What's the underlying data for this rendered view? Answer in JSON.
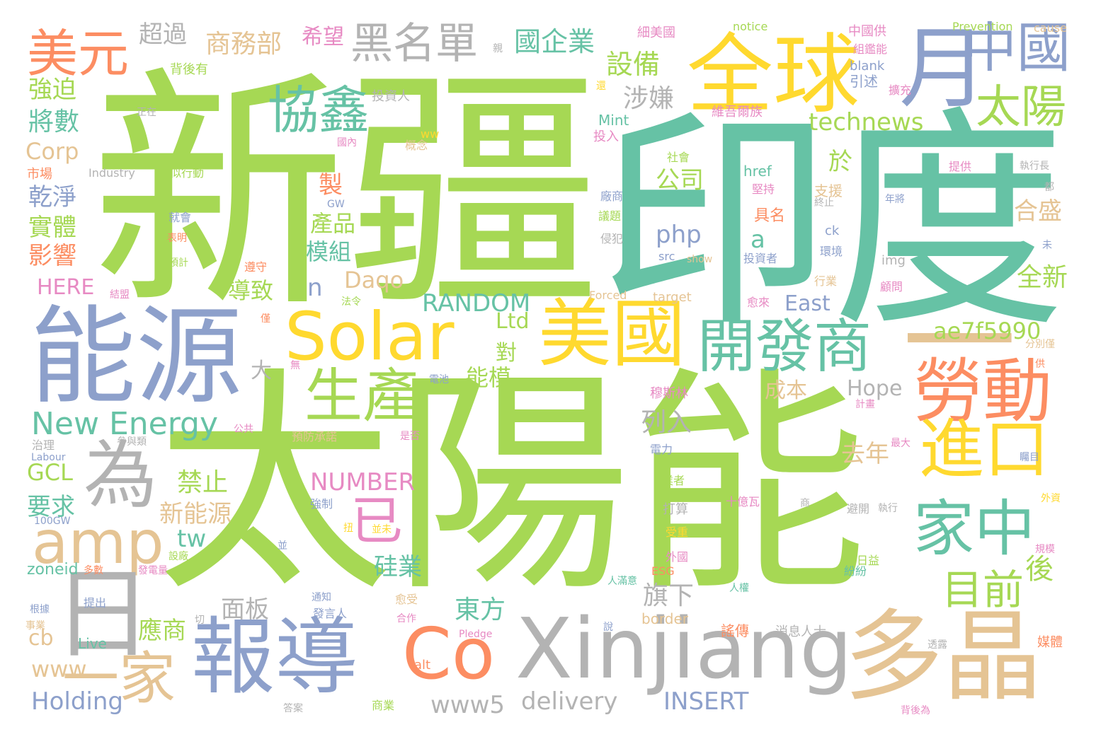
{
  "palette": {
    "green": "#a6d854",
    "teal": "#66c2a5",
    "blue": "#8da0cb",
    "orange": "#fc8d62",
    "yellow": "#ffd92f",
    "tan": "#e5c494",
    "gray": "#b3b3b3",
    "pink": "#e78ac3"
  },
  "words": [
    {
      "text": "新疆",
      "color": "green"
    },
    {
      "text": "印度",
      "color": "teal"
    },
    {
      "text": "太陽能",
      "color": "green"
    },
    {
      "text": "能源",
      "color": "blue"
    },
    {
      "text": "全球",
      "color": "yellow"
    },
    {
      "text": "月",
      "color": "blue"
    },
    {
      "text": "中國",
      "color": "blue"
    },
    {
      "text": "太陽",
      "color": "green"
    },
    {
      "text": "美元",
      "color": "orange"
    },
    {
      "text": "黑名單",
      "color": "gray"
    },
    {
      "text": "協鑫",
      "color": "teal"
    },
    {
      "text": "Solar",
      "color": "yellow"
    },
    {
      "text": "美國",
      "color": "yellow"
    },
    {
      "text": "開發商",
      "color": "teal"
    },
    {
      "text": "一",
      "color": "tan"
    },
    {
      "text": "勞動",
      "color": "orange"
    },
    {
      "text": "進口",
      "color": "yellow"
    },
    {
      "text": "生產",
      "color": "green"
    },
    {
      "text": "為",
      "color": "gray"
    },
    {
      "text": "amp",
      "color": "tan"
    },
    {
      "text": "家中",
      "color": "teal"
    },
    {
      "text": "目前",
      "color": "green"
    },
    {
      "text": "已",
      "color": "pink"
    },
    {
      "text": "日",
      "color": "gray"
    },
    {
      "text": "一家",
      "color": "tan"
    },
    {
      "text": "報導",
      "color": "blue"
    },
    {
      "text": "Co",
      "color": "orange"
    },
    {
      "text": "Xinjiang",
      "color": "gray"
    },
    {
      "text": "多晶",
      "color": "tan"
    },
    {
      "text": "New Energy",
      "color": "teal"
    },
    {
      "text": "technews",
      "color": "green"
    },
    {
      "text": "ae7f5990",
      "color": "green"
    },
    {
      "text": "RANDOM",
      "color": "teal"
    },
    {
      "text": "NUMBER",
      "color": "pink"
    },
    {
      "text": "INSERT",
      "color": "blue"
    },
    {
      "text": "delivery",
      "color": "gray"
    },
    {
      "text": "www5",
      "color": "gray"
    },
    {
      "text": "Holding",
      "color": "blue"
    },
    {
      "text": "www",
      "color": "tan"
    },
    {
      "text": "HERE",
      "color": "pink"
    },
    {
      "text": "Corp",
      "color": "tan"
    },
    {
      "text": "GCL",
      "color": "green"
    },
    {
      "text": "Daqo",
      "color": "tan"
    },
    {
      "text": "Ltd",
      "color": "green"
    },
    {
      "text": "Hope",
      "color": "gray"
    },
    {
      "text": "East",
      "color": "blue"
    },
    {
      "text": "php",
      "color": "blue"
    },
    {
      "text": "a",
      "color": "teal"
    },
    {
      "text": "n",
      "color": "blue"
    },
    {
      "text": "tw",
      "color": "teal"
    },
    {
      "text": "cb",
      "color": "tan"
    },
    {
      "text": "zoneid",
      "color": "teal"
    },
    {
      "text": "超過",
      "color": "gray"
    },
    {
      "text": "商務部",
      "color": "tan"
    },
    {
      "text": "希望",
      "color": "pink"
    },
    {
      "text": "國企業",
      "color": "teal"
    },
    {
      "text": "設備",
      "color": "green"
    },
    {
      "text": "涉嫌",
      "color": "gray"
    },
    {
      "text": "強迫",
      "color": "green"
    },
    {
      "text": "將數",
      "color": "teal"
    },
    {
      "text": "乾淨",
      "color": "blue"
    },
    {
      "text": "實體",
      "color": "green"
    },
    {
      "text": "影響",
      "color": "orange"
    },
    {
      "text": "公司",
      "color": "green"
    },
    {
      "text": "於",
      "color": "green"
    },
    {
      "text": "製",
      "color": "orange"
    },
    {
      "text": "產品",
      "color": "green"
    },
    {
      "text": "模組",
      "color": "teal"
    },
    {
      "text": "導致",
      "color": "green"
    },
    {
      "text": "合盛",
      "color": "tan"
    },
    {
      "text": "全新",
      "color": "green"
    },
    {
      "text": "對",
      "color": "green"
    },
    {
      "text": "能模",
      "color": "green"
    },
    {
      "text": "大",
      "color": "gray"
    },
    {
      "text": "成本",
      "color": "tan"
    },
    {
      "text": "列入",
      "color": "gray"
    },
    {
      "text": "去年",
      "color": "tan"
    },
    {
      "text": "禁止",
      "color": "green"
    },
    {
      "text": "新能源",
      "color": "tan"
    },
    {
      "text": "要求",
      "color": "teal"
    },
    {
      "text": "硅業",
      "color": "teal"
    },
    {
      "text": "後",
      "color": "green"
    },
    {
      "text": "面板",
      "color": "gray"
    },
    {
      "text": "旗下",
      "color": "gray"
    },
    {
      "text": "東方",
      "color": "teal"
    },
    {
      "text": "應商",
      "color": "green"
    },
    {
      "text": "背後有",
      "color": "green"
    },
    {
      "text": "投資人",
      "color": "gray"
    },
    {
      "text": "細美國",
      "color": "pink"
    },
    {
      "text": "notice",
      "color": "green"
    },
    {
      "text": "Prevention",
      "color": "green"
    },
    {
      "text": "cause",
      "color": "tan"
    },
    {
      "text": "中國供",
      "color": "pink"
    },
    {
      "text": "組鑑能",
      "color": "pink"
    },
    {
      "text": "blank",
      "color": "blue"
    },
    {
      "text": "引述",
      "color": "blue"
    },
    {
      "text": "擴充",
      "color": "pink"
    },
    {
      "text": "維吾爾族",
      "color": "pink"
    },
    {
      "text": "Mint",
      "color": "teal"
    },
    {
      "text": "投入",
      "color": "pink"
    },
    {
      "text": "Industry",
      "color": "gray"
    },
    {
      "text": "似行動",
      "color": "green"
    },
    {
      "text": "市場",
      "color": "orange"
    },
    {
      "text": "正在",
      "color": "gray"
    },
    {
      "text": "國內",
      "color": "pink"
    },
    {
      "text": "概念",
      "color": "tan"
    },
    {
      "text": "社會",
      "color": "green"
    },
    {
      "text": "href",
      "color": "teal"
    },
    {
      "text": "堅持",
      "color": "pink"
    },
    {
      "text": "支援",
      "color": "tan"
    },
    {
      "text": "提供",
      "color": "pink"
    },
    {
      "text": "執行長",
      "color": "gray"
    },
    {
      "text": "廠商",
      "color": "blue"
    },
    {
      "text": "就會",
      "color": "blue"
    },
    {
      "text": "表明",
      "color": "orange"
    },
    {
      "text": "具名",
      "color": "orange"
    },
    {
      "text": "年將",
      "color": "blue"
    },
    {
      "text": "ck",
      "color": "blue"
    },
    {
      "text": "src",
      "color": "blue"
    },
    {
      "text": "show",
      "color": "tan"
    },
    {
      "text": "投資者",
      "color": "blue"
    },
    {
      "text": "環境",
      "color": "blue"
    },
    {
      "text": "img",
      "color": "gray"
    },
    {
      "text": "預計",
      "color": "green"
    },
    {
      "text": "遵守",
      "color": "orange"
    },
    {
      "text": "議題",
      "color": "green"
    },
    {
      "text": "侵犯",
      "color": "gray"
    },
    {
      "text": "target",
      "color": "tan"
    },
    {
      "text": "Forced",
      "color": "tan"
    },
    {
      "text": "愈來",
      "color": "pink"
    },
    {
      "text": "行業",
      "color": "tan"
    },
    {
      "text": "顧問",
      "color": "pink"
    },
    {
      "text": "結盟",
      "color": "pink"
    },
    {
      "text": "法令",
      "color": "green"
    },
    {
      "text": "電池",
      "color": "blue"
    },
    {
      "text": "穆斯林",
      "color": "pink"
    },
    {
      "text": "分別僅",
      "color": "tan"
    },
    {
      "text": "計畫",
      "color": "pink"
    },
    {
      "text": "公共",
      "color": "pink"
    },
    {
      "text": "參與類",
      "color": "gray"
    },
    {
      "text": "預防承諾",
      "color": "tan"
    },
    {
      "text": "是否",
      "color": "pink"
    },
    {
      "text": "治理",
      "color": "gray"
    },
    {
      "text": "Labour",
      "color": "blue"
    },
    {
      "text": "電力",
      "color": "blue"
    },
    {
      "text": "最大",
      "color": "pink"
    },
    {
      "text": "矚目",
      "color": "blue"
    },
    {
      "text": "業者",
      "color": "green"
    },
    {
      "text": "100GW",
      "color": "blue"
    },
    {
      "text": "強制",
      "color": "blue"
    },
    {
      "text": "十億瓦",
      "color": "pink"
    },
    {
      "text": "避開",
      "color": "gray"
    },
    {
      "text": "執行",
      "color": "gray"
    },
    {
      "text": "外資",
      "color": "yellow"
    },
    {
      "text": "受重",
      "color": "yellow"
    },
    {
      "text": "日益",
      "color": "green"
    },
    {
      "text": "規模",
      "color": "pink"
    },
    {
      "text": "多數",
      "color": "orange"
    },
    {
      "text": "設廠",
      "color": "green"
    },
    {
      "text": "發電量",
      "color": "pink"
    },
    {
      "text": "外國",
      "color": "pink"
    },
    {
      "text": "人權",
      "color": "teal"
    },
    {
      "text": "人滿意",
      "color": "teal"
    },
    {
      "text": "事業",
      "color": "tan"
    },
    {
      "text": "根據",
      "color": "blue"
    },
    {
      "text": "提出",
      "color": "blue"
    },
    {
      "text": "通知",
      "color": "blue"
    },
    {
      "text": "發言人",
      "color": "blue"
    },
    {
      "text": "愈受",
      "color": "tan"
    },
    {
      "text": "紛紛",
      "color": "teal"
    },
    {
      "text": "透露",
      "color": "gray"
    },
    {
      "text": "Pledge",
      "color": "pink"
    },
    {
      "text": "消息人士",
      "color": "gray"
    },
    {
      "text": "合作",
      "color": "pink"
    },
    {
      "text": "謠傳",
      "color": "orange"
    },
    {
      "text": "媒體",
      "color": "orange"
    },
    {
      "text": "Live",
      "color": "teal"
    },
    {
      "text": "alt",
      "color": "orange"
    },
    {
      "text": "商業",
      "color": "green"
    },
    {
      "text": "背後為",
      "color": "pink"
    },
    {
      "text": "border",
      "color": "tan"
    },
    {
      "text": "ESG",
      "color": "orange"
    },
    {
      "text": "GW",
      "color": "blue"
    },
    {
      "text": "ww",
      "color": "yellow"
    },
    {
      "text": "答案",
      "color": "gray"
    },
    {
      "text": "說",
      "color": "blue"
    },
    {
      "text": "切",
      "color": "gray"
    },
    {
      "text": "並",
      "color": "blue"
    },
    {
      "text": "並未",
      "color": "yellow"
    },
    {
      "text": "都",
      "color": "gray"
    },
    {
      "text": "未",
      "color": "blue"
    },
    {
      "text": "無",
      "color": "pink"
    },
    {
      "text": "僅",
      "color": "orange"
    },
    {
      "text": "供",
      "color": "orange"
    },
    {
      "text": "商",
      "color": "gray"
    },
    {
      "text": "還",
      "color": "yellow"
    },
    {
      "text": "親",
      "color": "gray"
    },
    {
      "text": "終止",
      "color": "gray"
    },
    {
      "text": "扭",
      "color": "yellow"
    },
    {
      "text": "打算",
      "color": "gray"
    }
  ]
}
